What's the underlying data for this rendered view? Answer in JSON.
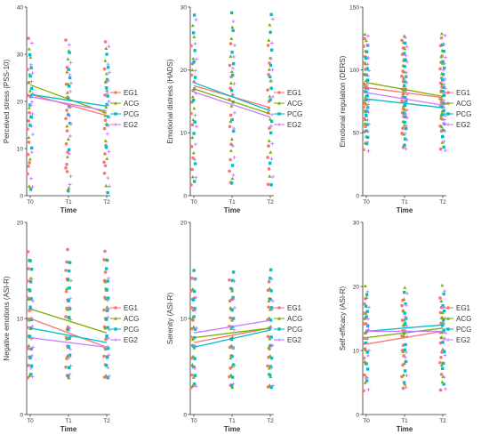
{
  "legend_labels": [
    "EG1",
    "ACG",
    "PCG",
    "EG2"
  ],
  "colors": {
    "EG1": "#f8766d",
    "ACG": "#7cae00",
    "PCG": "#00bfc4",
    "EG2": "#c77cff",
    "axis": "#333333"
  },
  "chart_data": [
    {
      "type": "scatter",
      "title": "",
      "xlabel": "Time",
      "ylabel": "Perceived stress (PSS-10)",
      "categories": [
        "T0",
        "T1",
        "T2"
      ],
      "ylim": [
        0,
        40
      ],
      "yticks": [
        0,
        10,
        20,
        30,
        40
      ],
      "grid": false,
      "legend": "right",
      "series": [
        {
          "name": "EG1",
          "start": 21.5,
          "end": 17.0
        },
        {
          "name": "ACG",
          "start": 23.5,
          "end": 17.5
        },
        {
          "name": "PCG",
          "start": 21.5,
          "end": 19.0
        },
        {
          "name": "EG2",
          "start": 21.0,
          "end": 18.0
        }
      ],
      "points": [
        [
          5,
          6,
          7,
          9,
          11,
          14,
          16,
          18,
          21,
          24,
          27,
          33
        ],
        [
          2,
          8,
          12,
          15,
          17,
          19,
          22,
          24,
          26,
          29,
          31
        ],
        [
          1,
          10,
          15,
          17,
          19,
          21,
          23,
          25,
          27,
          30
        ],
        [
          2,
          4,
          9,
          13,
          15,
          17,
          19,
          20,
          22,
          24,
          26,
          28,
          32
        ]
      ]
    },
    {
      "type": "scatter",
      "title": "",
      "xlabel": "Time",
      "ylabel": "Emotional distress (HADS)",
      "categories": [
        "T0",
        "T1",
        "T2"
      ],
      "ylim": [
        0,
        30
      ],
      "yticks": [
        0,
        10,
        20,
        30
      ],
      "grid": false,
      "legend": "right",
      "series": [
        {
          "name": "EG1",
          "start": 17.5,
          "end": 14.0
        },
        {
          "name": "ACG",
          "start": 17.0,
          "end": 13.0
        },
        {
          "name": "PCG",
          "start": 18.0,
          "end": 13.5
        },
        {
          "name": "EG2",
          "start": 16.5,
          "end": 12.5
        }
      ],
      "points": [
        [
          2,
          4,
          6,
          8,
          11,
          13,
          15,
          17,
          19,
          21,
          24
        ],
        [
          3,
          7,
          9,
          12,
          14,
          16,
          18,
          20,
          22,
          25,
          27
        ],
        [
          2,
          5,
          10,
          12,
          15,
          17,
          19,
          21,
          23,
          26,
          29
        ],
        [
          3,
          6,
          8,
          11,
          13,
          16,
          18,
          20,
          22,
          24,
          28
        ]
      ]
    },
    {
      "type": "scatter",
      "title": "",
      "xlabel": "Time",
      "ylabel": "Emotional regulation (DERS)",
      "categories": [
        "T0",
        "T1",
        "T2"
      ],
      "ylim": [
        0,
        150
      ],
      "yticks": [
        0,
        50,
        100,
        150
      ],
      "grid": false,
      "legend": "right",
      "series": [
        {
          "name": "EG1",
          "start": 86,
          "end": 78
        },
        {
          "name": "ACG",
          "start": 90,
          "end": 79
        },
        {
          "name": "PCG",
          "start": 77,
          "end": 70
        },
        {
          "name": "EG2",
          "start": 82,
          "end": 72
        }
      ],
      "points": [
        [
          38,
          50,
          55,
          62,
          66,
          70,
          74,
          78,
          82,
          86,
          90,
          95,
          100,
          106,
          112,
          118,
          125
        ],
        [
          42,
          48,
          56,
          60,
          64,
          68,
          72,
          76,
          80,
          84,
          88,
          92,
          98,
          104,
          110,
          116,
          122,
          128
        ],
        [
          40,
          46,
          52,
          58,
          63,
          67,
          71,
          75,
          79,
          83,
          87,
          91,
          96,
          102,
          108,
          114,
          120
        ],
        [
          36,
          44,
          50,
          57,
          61,
          65,
          69,
          73,
          77,
          81,
          85,
          89,
          94,
          99,
          105,
          111,
          119,
          127
        ]
      ]
    },
    {
      "type": "scatter",
      "title": "",
      "xlabel": "Time",
      "ylabel": "Negative emotions (ASI-R)",
      "categories": [
        "T0",
        "T1",
        "T2"
      ],
      "ylim": [
        0,
        20
      ],
      "yticks": [
        0,
        10,
        20
      ],
      "grid": false,
      "legend": "right",
      "series": [
        {
          "name": "EG1",
          "start": 10.0,
          "end": 7.0
        },
        {
          "name": "ACG",
          "start": 11.0,
          "end": 8.5
        },
        {
          "name": "PCG",
          "start": 9.0,
          "end": 7.5
        },
        {
          "name": "EG2",
          "start": 8.0,
          "end": 7.0
        }
      ],
      "points": [
        [
          4,
          5,
          6,
          7,
          8,
          9,
          10,
          11,
          12,
          13,
          14,
          15,
          16,
          17
        ],
        [
          4,
          6,
          7,
          8,
          9,
          10,
          11,
          12,
          13,
          14,
          16
        ],
        [
          4,
          5,
          6,
          7,
          8,
          9,
          10,
          11,
          12,
          13,
          14,
          15,
          16
        ],
        [
          4,
          5,
          6,
          7,
          8,
          9,
          10,
          11,
          12,
          14
        ]
      ]
    },
    {
      "type": "scatter",
      "title": "",
      "xlabel": "Time",
      "ylabel": "Serenity (ASI-R)",
      "categories": [
        "T0",
        "T1",
        "T2"
      ],
      "ylim": [
        0,
        20
      ],
      "yticks": [
        0,
        10,
        20
      ],
      "grid": false,
      "legend": "right",
      "series": [
        {
          "name": "EG1",
          "start": 7.5,
          "end": 9.0
        },
        {
          "name": "ACG",
          "start": 8.0,
          "end": 9.0
        },
        {
          "name": "PCG",
          "start": 7.0,
          "end": 8.8
        },
        {
          "name": "EG2",
          "start": 8.5,
          "end": 9.8
        }
      ],
      "points": [
        [
          3,
          4,
          5,
          6,
          7,
          8,
          9,
          10,
          11,
          12,
          13,
          14
        ],
        [
          3,
          4,
          5,
          6,
          7,
          8,
          9,
          10,
          11,
          12,
          13
        ],
        [
          3,
          4,
          5,
          6,
          7,
          8,
          9,
          10,
          11,
          12,
          13,
          14,
          15
        ],
        [
          3,
          5,
          7,
          9,
          11,
          12,
          14
        ]
      ]
    },
    {
      "type": "scatter",
      "title": "",
      "xlabel": "Time",
      "ylabel": "Self-efficacy (ASI-R)",
      "categories": [
        "T0",
        "T1",
        "T2"
      ],
      "ylim": [
        0,
        30
      ],
      "yticks": [
        0,
        10,
        20,
        30
      ],
      "grid": false,
      "legend": "right",
      "series": [
        {
          "name": "EG1",
          "start": 11.0,
          "end": 13.0
        },
        {
          "name": "ACG",
          "start": 12.0,
          "end": 13.5
        },
        {
          "name": "PCG",
          "start": 13.0,
          "end": 14.0
        },
        {
          "name": "EG2",
          "start": 13.0,
          "end": 13.0
        }
      ],
      "points": [
        [
          4,
          6,
          8,
          9,
          10,
          11,
          12,
          13,
          14,
          15,
          16,
          17,
          18
        ],
        [
          5,
          6,
          8,
          10,
          12,
          13,
          14,
          15,
          16,
          18,
          20
        ],
        [
          5,
          7,
          8,
          10,
          11,
          13,
          14,
          15,
          16,
          17,
          19
        ],
        [
          4,
          6,
          9,
          10,
          12,
          13,
          14,
          15,
          17,
          19
        ]
      ]
    }
  ]
}
